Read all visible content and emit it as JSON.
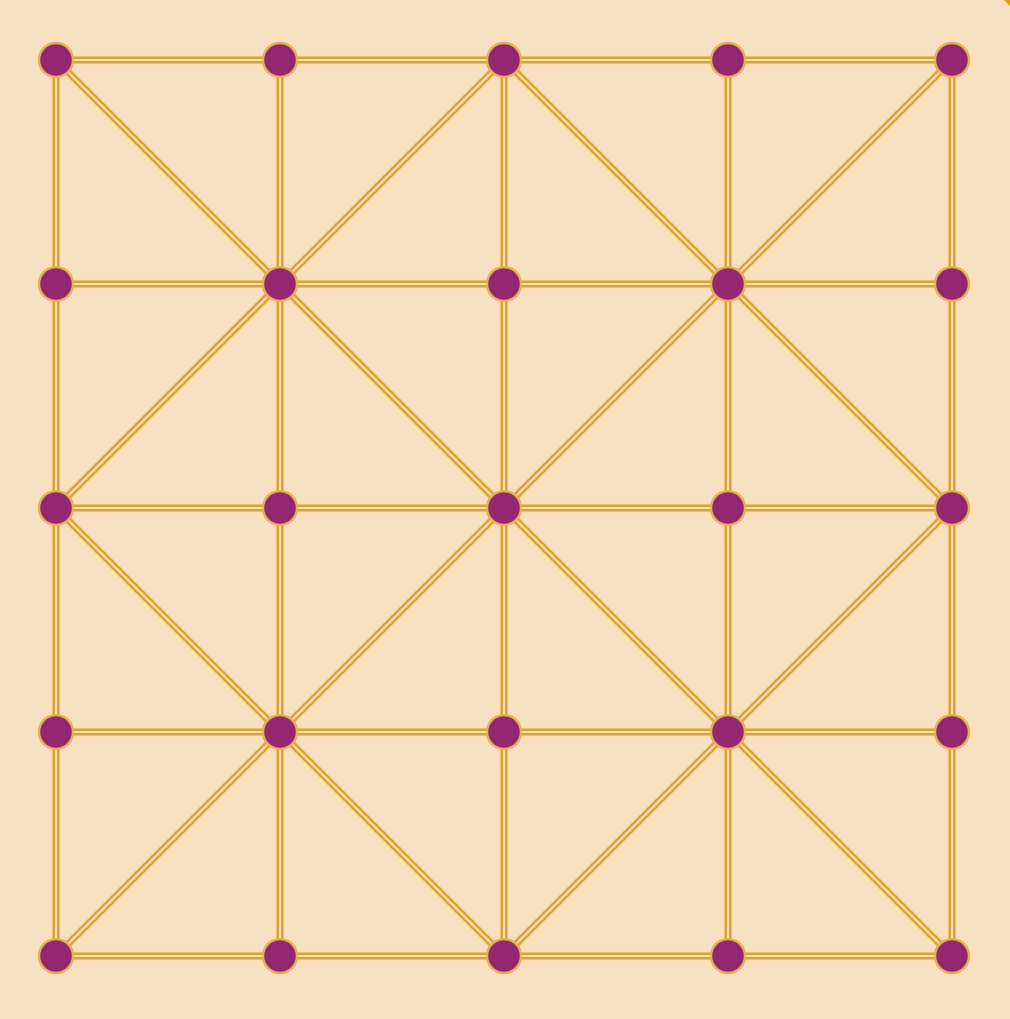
{
  "board": {
    "colors": {
      "background": "#F6E0C0",
      "line_outer": "#E0A12A",
      "line_inner": "#F8E5C6",
      "piece_fill": "#952670",
      "piece_stroke": "#E2B25A"
    },
    "grid_size": 5,
    "diagonals": [
      [
        0,
        0,
        1,
        1
      ],
      [
        1,
        1,
        2,
        2
      ],
      [
        1,
        1,
        2,
        0
      ],
      [
        0,
        2,
        1,
        1
      ],
      [
        2,
        0,
        3,
        1
      ],
      [
        3,
        1,
        4,
        2
      ],
      [
        3,
        1,
        4,
        0
      ],
      [
        2,
        2,
        3,
        1
      ],
      [
        1,
        1,
        0,
        2
      ],
      [
        1,
        1,
        2,
        2
      ],
      [
        0,
        2,
        1,
        3
      ],
      [
        1,
        3,
        2,
        4
      ],
      [
        1,
        3,
        2,
        2
      ],
      [
        0,
        4,
        1,
        3
      ],
      [
        2,
        2,
        3,
        3
      ],
      [
        3,
        3,
        4,
        4
      ],
      [
        3,
        3,
        4,
        2
      ],
      [
        2,
        4,
        3,
        3
      ]
    ],
    "pieces": [
      [
        0,
        0
      ],
      [
        1,
        0
      ],
      [
        2,
        0
      ],
      [
        3,
        0
      ],
      [
        4,
        0
      ],
      [
        0,
        1
      ],
      [
        1,
        1
      ],
      [
        2,
        1
      ],
      [
        3,
        1
      ],
      [
        4,
        1
      ],
      [
        0,
        2
      ],
      [
        1,
        2
      ],
      [
        2,
        2
      ],
      [
        3,
        2
      ],
      [
        4,
        2
      ],
      [
        0,
        3
      ],
      [
        1,
        3
      ],
      [
        2,
        3
      ],
      [
        3,
        3
      ],
      [
        4,
        3
      ],
      [
        0,
        4
      ],
      [
        1,
        4
      ],
      [
        2,
        4
      ],
      [
        3,
        4
      ],
      [
        4,
        4
      ]
    ]
  }
}
